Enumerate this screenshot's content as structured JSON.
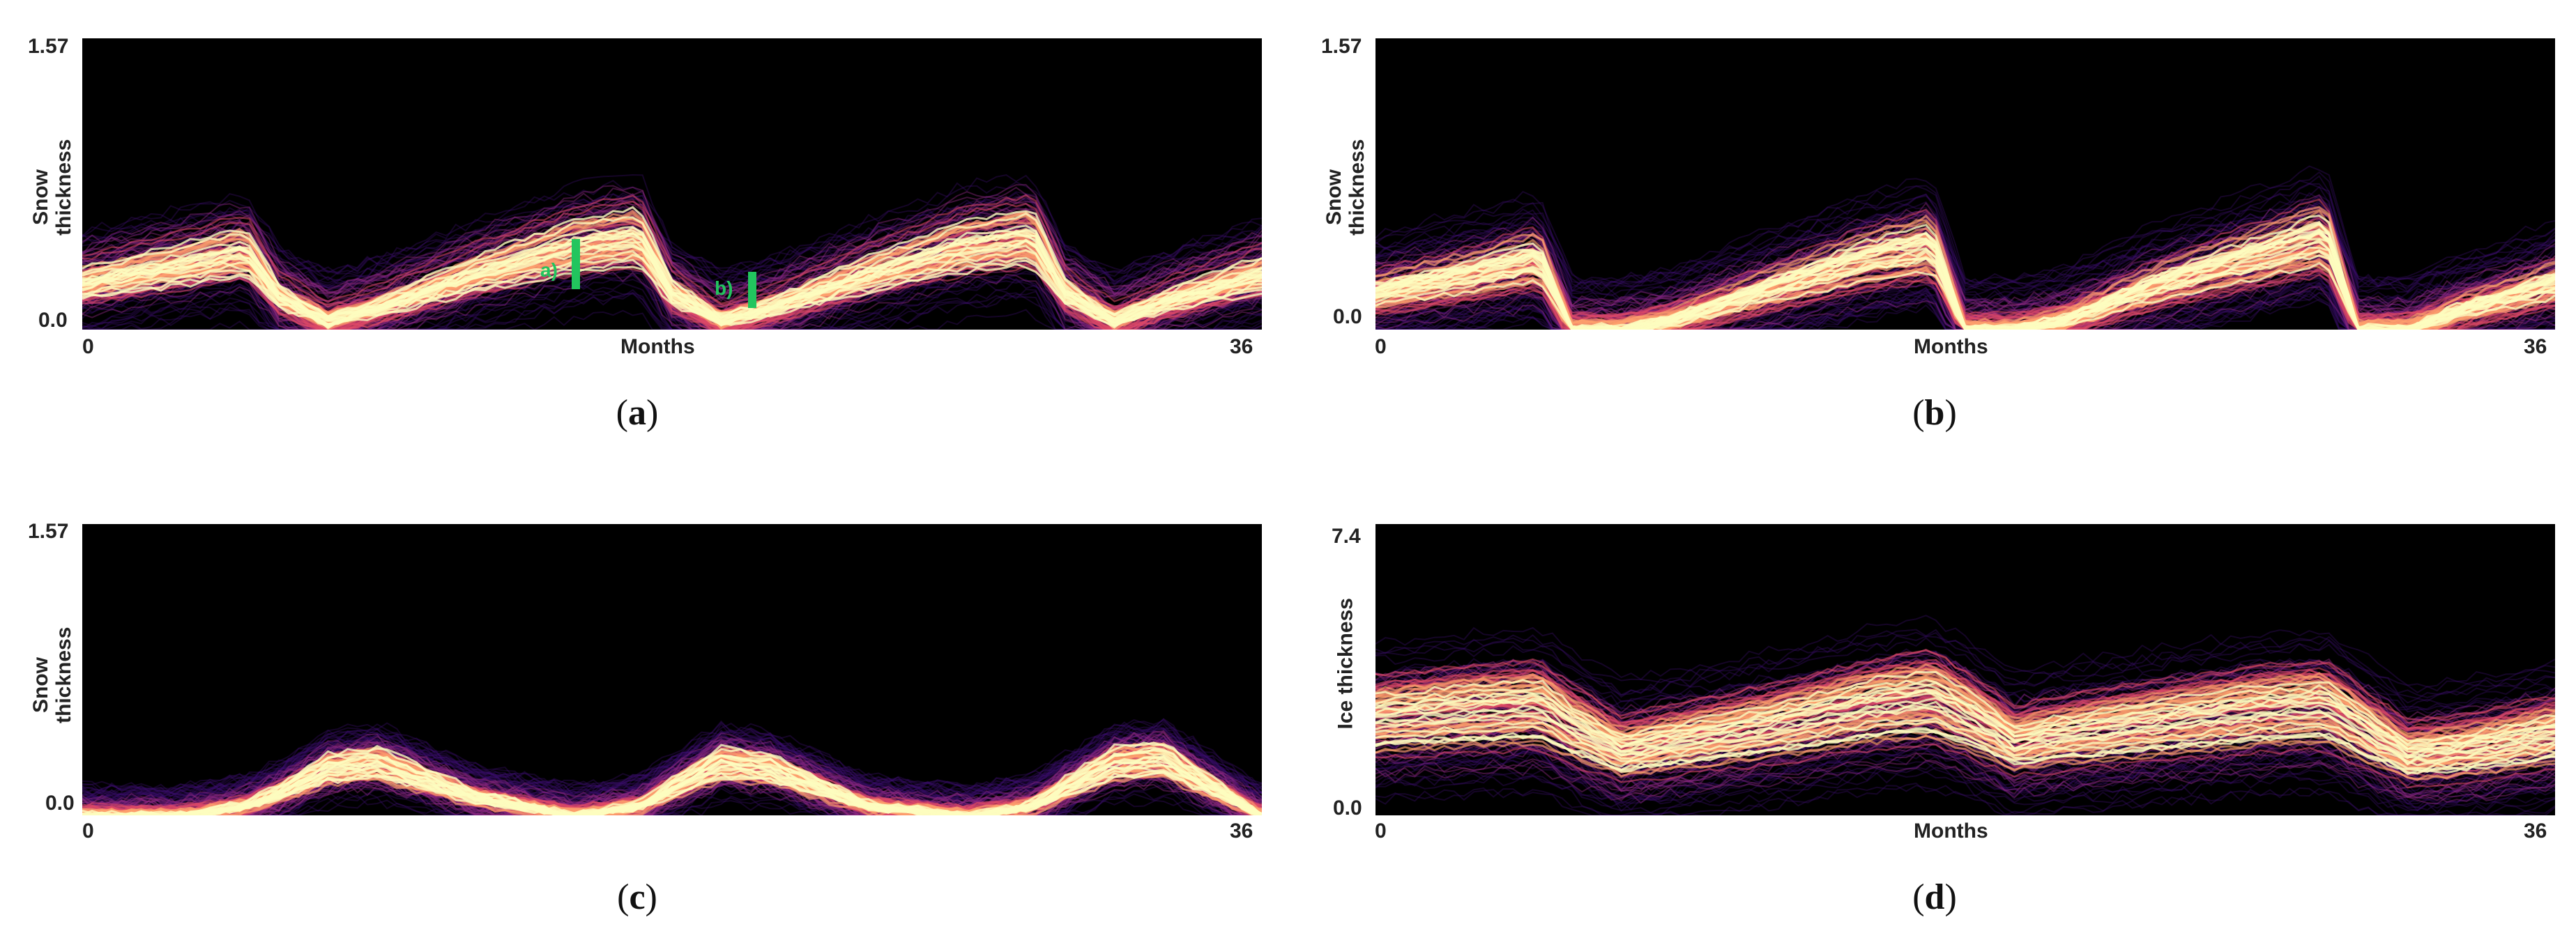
{
  "panels": [
    {
      "id": "a",
      "caption": "a",
      "ylabel": "Snow\nthickness",
      "ytop": "1.57",
      "ybot": "0.0",
      "xlabel": "Months",
      "xleft": "0",
      "xright": "36",
      "annotations": [
        "a)",
        "b)"
      ]
    },
    {
      "id": "b",
      "caption": "b",
      "ylabel": "Snow\nthickness",
      "ytop": "1.57",
      "ybot": "0.0",
      "xlabel": "Months",
      "xleft": "0",
      "xright": "36"
    },
    {
      "id": "c",
      "caption": "c",
      "ylabel": "Snow\nthickness",
      "ytop": "1.57",
      "ybot": "0.0",
      "xlabel": "",
      "xleft": "0",
      "xright": "36"
    },
    {
      "id": "d",
      "caption": "d",
      "ylabel": "Ice thickness",
      "ytop": "7.4",
      "ybot": "0.0",
      "xlabel": "Months",
      "xleft": "0",
      "xright": "36"
    }
  ],
  "chart_data": [
    {
      "type": "line",
      "panel": "a",
      "xlim": [
        0,
        36
      ],
      "ylim": [
        0,
        1.57
      ],
      "x": [
        0,
        3,
        5,
        6,
        7.5,
        9,
        12,
        15,
        17,
        18,
        19.5,
        21,
        24,
        27,
        29,
        30,
        31.5,
        33,
        36
      ],
      "series": [
        {
          "name": "",
          "values": [
            0.25,
            0.35,
            0.42,
            0.18,
            0.05,
            0.12,
            0.3,
            0.45,
            0.5,
            0.2,
            0.05,
            0.12,
            0.3,
            0.45,
            0.5,
            0.2,
            0.05,
            0.15,
            0.3
          ]
        }
      ],
      "colormap": [
        "#000000",
        "#3b0f70",
        "#8c2981",
        "#de4968",
        "#fe9f6d",
        "#fcfdbf"
      ]
    },
    {
      "type": "line",
      "panel": "b",
      "xlim": [
        0,
        36
      ],
      "ylim": [
        0,
        1.57
      ],
      "x": [
        0,
        3,
        5,
        6,
        7.5,
        9,
        12,
        15,
        17,
        18,
        19.5,
        21,
        24,
        27,
        29,
        30,
        31.5,
        33,
        36
      ],
      "series": [
        {
          "name": "",
          "values": [
            0.2,
            0.3,
            0.38,
            0.0,
            0.0,
            0.05,
            0.22,
            0.38,
            0.45,
            0.0,
            0.0,
            0.05,
            0.25,
            0.4,
            0.5,
            0.0,
            0.0,
            0.1,
            0.25
          ]
        }
      ],
      "colormap": [
        "#000000",
        "#3b0f70",
        "#8c2981",
        "#de4968",
        "#fe9f6d",
        "#fcfdbf"
      ]
    },
    {
      "type": "line",
      "panel": "c",
      "xlim": [
        0,
        36
      ],
      "ylim": [
        0,
        1.57
      ],
      "x": [
        0,
        3,
        5,
        6,
        7.5,
        9,
        12,
        15,
        17,
        18,
        19.5,
        21,
        24,
        27,
        29,
        30,
        31.5,
        33,
        36
      ],
      "series": [
        {
          "name": "",
          "values": [
            0.0,
            0.0,
            0.05,
            0.12,
            0.25,
            0.28,
            0.1,
            0.0,
            0.05,
            0.15,
            0.28,
            0.25,
            0.05,
            0.0,
            0.05,
            0.15,
            0.28,
            0.3,
            0.0
          ]
        }
      ],
      "colormap": [
        "#000000",
        "#3b0f70",
        "#8c2981",
        "#de4968",
        "#fe9f6d",
        "#fcfdbf"
      ]
    },
    {
      "type": "line",
      "panel": "d",
      "xlim": [
        0,
        36
      ],
      "ylim": [
        0,
        7.4
      ],
      "x": [
        0,
        3,
        5,
        6,
        7.5,
        9,
        12,
        15,
        17,
        18,
        19.5,
        21,
        24,
        27,
        29,
        30,
        31.5,
        33,
        36
      ],
      "series": [
        {
          "name": "",
          "values": [
            2.4,
            2.6,
            2.7,
            2.2,
            1.6,
            1.8,
            2.2,
            2.7,
            2.9,
            2.5,
            1.8,
            2.0,
            2.3,
            2.6,
            2.7,
            2.2,
            1.5,
            1.6,
            2.0
          ]
        }
      ],
      "colormap": [
        "#000000",
        "#3b0f70",
        "#8c2981",
        "#de4968",
        "#fe9f6d",
        "#fcfdbf"
      ]
    }
  ]
}
